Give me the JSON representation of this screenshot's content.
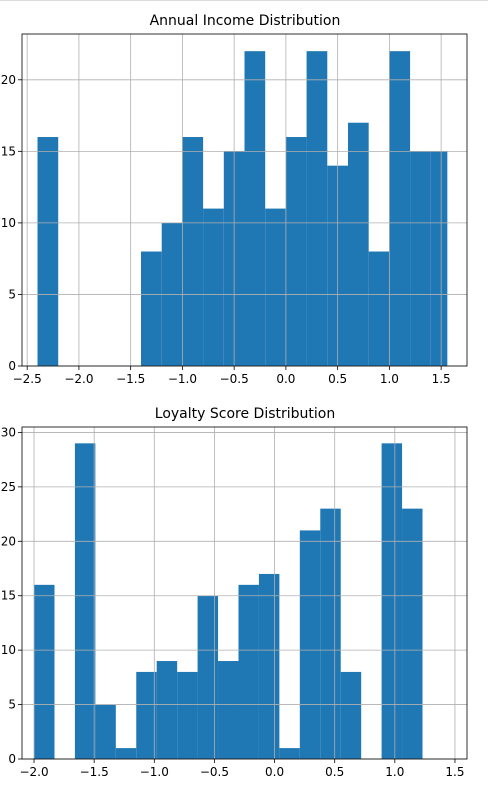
{
  "chart_data": [
    {
      "type": "bar",
      "title": "Annual Income Distribution",
      "xlabel": "",
      "ylabel": "",
      "bin_edges": [
        -2.4,
        -2.2,
        -2.0,
        -1.8,
        -1.6,
        -1.4,
        -1.2,
        -1.0,
        -0.8,
        -0.6,
        -0.4,
        -0.2,
        0.0,
        0.2,
        0.4,
        0.6,
        0.8,
        1.0,
        1.2,
        1.4,
        1.56
      ],
      "values": [
        16,
        0,
        0,
        0,
        0,
        8,
        10,
        16,
        11,
        15,
        22,
        11,
        16,
        22,
        14,
        17,
        8,
        22,
        15,
        15
      ],
      "xlim": [
        -2.55,
        1.75
      ],
      "ylim": [
        0,
        23.2
      ],
      "x_ticks": [
        -2.5,
        -2.0,
        -1.5,
        -1.0,
        -0.5,
        0.0,
        0.5,
        1.0,
        1.5
      ],
      "x_tick_labels": [
        "−2.5",
        "−2.0",
        "−1.5",
        "−1.0",
        "−0.5",
        "0.0",
        "0.5",
        "1.0",
        "1.5"
      ],
      "y_ticks": [
        0,
        5,
        10,
        15,
        20
      ],
      "y_tick_labels": [
        "0",
        "5",
        "10",
        "15",
        "20"
      ],
      "grid": true,
      "color": "#1f77b4"
    },
    {
      "type": "bar",
      "title": "Loyalty Score Distribution",
      "xlabel": "",
      "ylabel": "",
      "bin_edges": [
        -2.0,
        -1.83,
        -1.66,
        -1.49,
        -1.32,
        -1.15,
        -0.98,
        -0.81,
        -0.64,
        -0.47,
        -0.3,
        -0.13,
        0.04,
        0.21,
        0.38,
        0.55,
        0.72,
        0.89,
        1.06,
        1.23,
        1.42
      ],
      "values": [
        16,
        0,
        29,
        5,
        1,
        8,
        9,
        8,
        15,
        9,
        16,
        17,
        1,
        21,
        23,
        8,
        0,
        29,
        23,
        0
      ],
      "xlim": [
        -2.1,
        1.6
      ],
      "ylim": [
        0,
        30.5
      ],
      "x_ticks": [
        -2.0,
        -1.5,
        -1.0,
        -0.5,
        0.0,
        0.5,
        1.0,
        1.5
      ],
      "x_tick_labels": [
        "−2.0",
        "−1.5",
        "−1.0",
        "−0.5",
        "0.0",
        "0.5",
        "1.0",
        "1.5"
      ],
      "y_ticks": [
        0,
        5,
        10,
        15,
        20,
        25,
        30
      ],
      "y_tick_labels": [
        "0",
        "5",
        "10",
        "15",
        "20",
        "25",
        "30"
      ],
      "grid": true,
      "color": "#1f77b4"
    }
  ]
}
